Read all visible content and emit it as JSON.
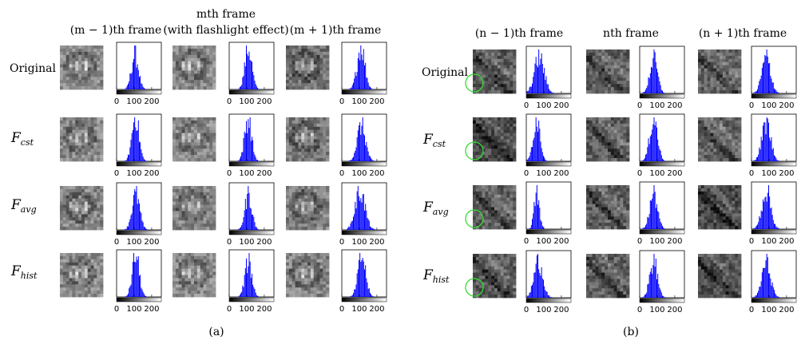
{
  "panel_a": {
    "caption": "(a)",
    "columns": [
      {
        "main": "(m − 1)th frame",
        "sub": ""
      },
      {
        "main": "mth frame",
        "sub": "(with flashlight effect)"
      },
      {
        "main": "(m + 1)th frame",
        "sub": ""
      }
    ]
  },
  "panel_b": {
    "caption": "(b)",
    "columns": [
      {
        "main": "(n − 1)th frame",
        "sub": ""
      },
      {
        "main": "nth frame",
        "sub": ""
      },
      {
        "main": "(n + 1)th frame",
        "sub": ""
      }
    ]
  },
  "row_labels": [
    {
      "text": "Original",
      "base": "",
      "sub": ""
    },
    {
      "text": "",
      "base": "F",
      "sub": "cst"
    },
    {
      "text": "",
      "base": "F",
      "sub": "avg"
    },
    {
      "text": "",
      "base": "F",
      "sub": "hist"
    }
  ],
  "hist_axis": {
    "x_ticks": [
      "0",
      "100",
      "200"
    ],
    "x_range": [
      0,
      255
    ],
    "colorbar": "gray-gradient",
    "bar_color": "#0000ff"
  },
  "highlight_circle_color": "#33dd33",
  "chart_data": {
    "type": "bar",
    "description_of_grid": "2 panels x 4 rows x 3 columns of intensity histograms",
    "x_range": [
      0,
      255
    ],
    "xticks": [
      0,
      100,
      200
    ],
    "series_by_panel": {
      "a": {
        "centers": [
          [
            105,
            110,
            110
          ],
          [
            108,
            108,
            112
          ],
          [
            110,
            110,
            105
          ],
          [
            110,
            110,
            115
          ]
        ],
        "widths": [
          [
            20,
            20,
            22
          ],
          [
            20,
            20,
            24
          ],
          [
            22,
            20,
            28
          ],
          [
            20,
            20,
            22
          ]
        ]
      },
      "b": {
        "centers": [
          [
            75,
            80,
            85
          ],
          [
            60,
            80,
            85
          ],
          [
            60,
            80,
            85
          ],
          [
            70,
            80,
            85
          ]
        ],
        "widths": [
          [
            28,
            22,
            25
          ],
          [
            20,
            22,
            25
          ],
          [
            15,
            22,
            25
          ],
          [
            25,
            22,
            25
          ]
        ]
      }
    }
  }
}
